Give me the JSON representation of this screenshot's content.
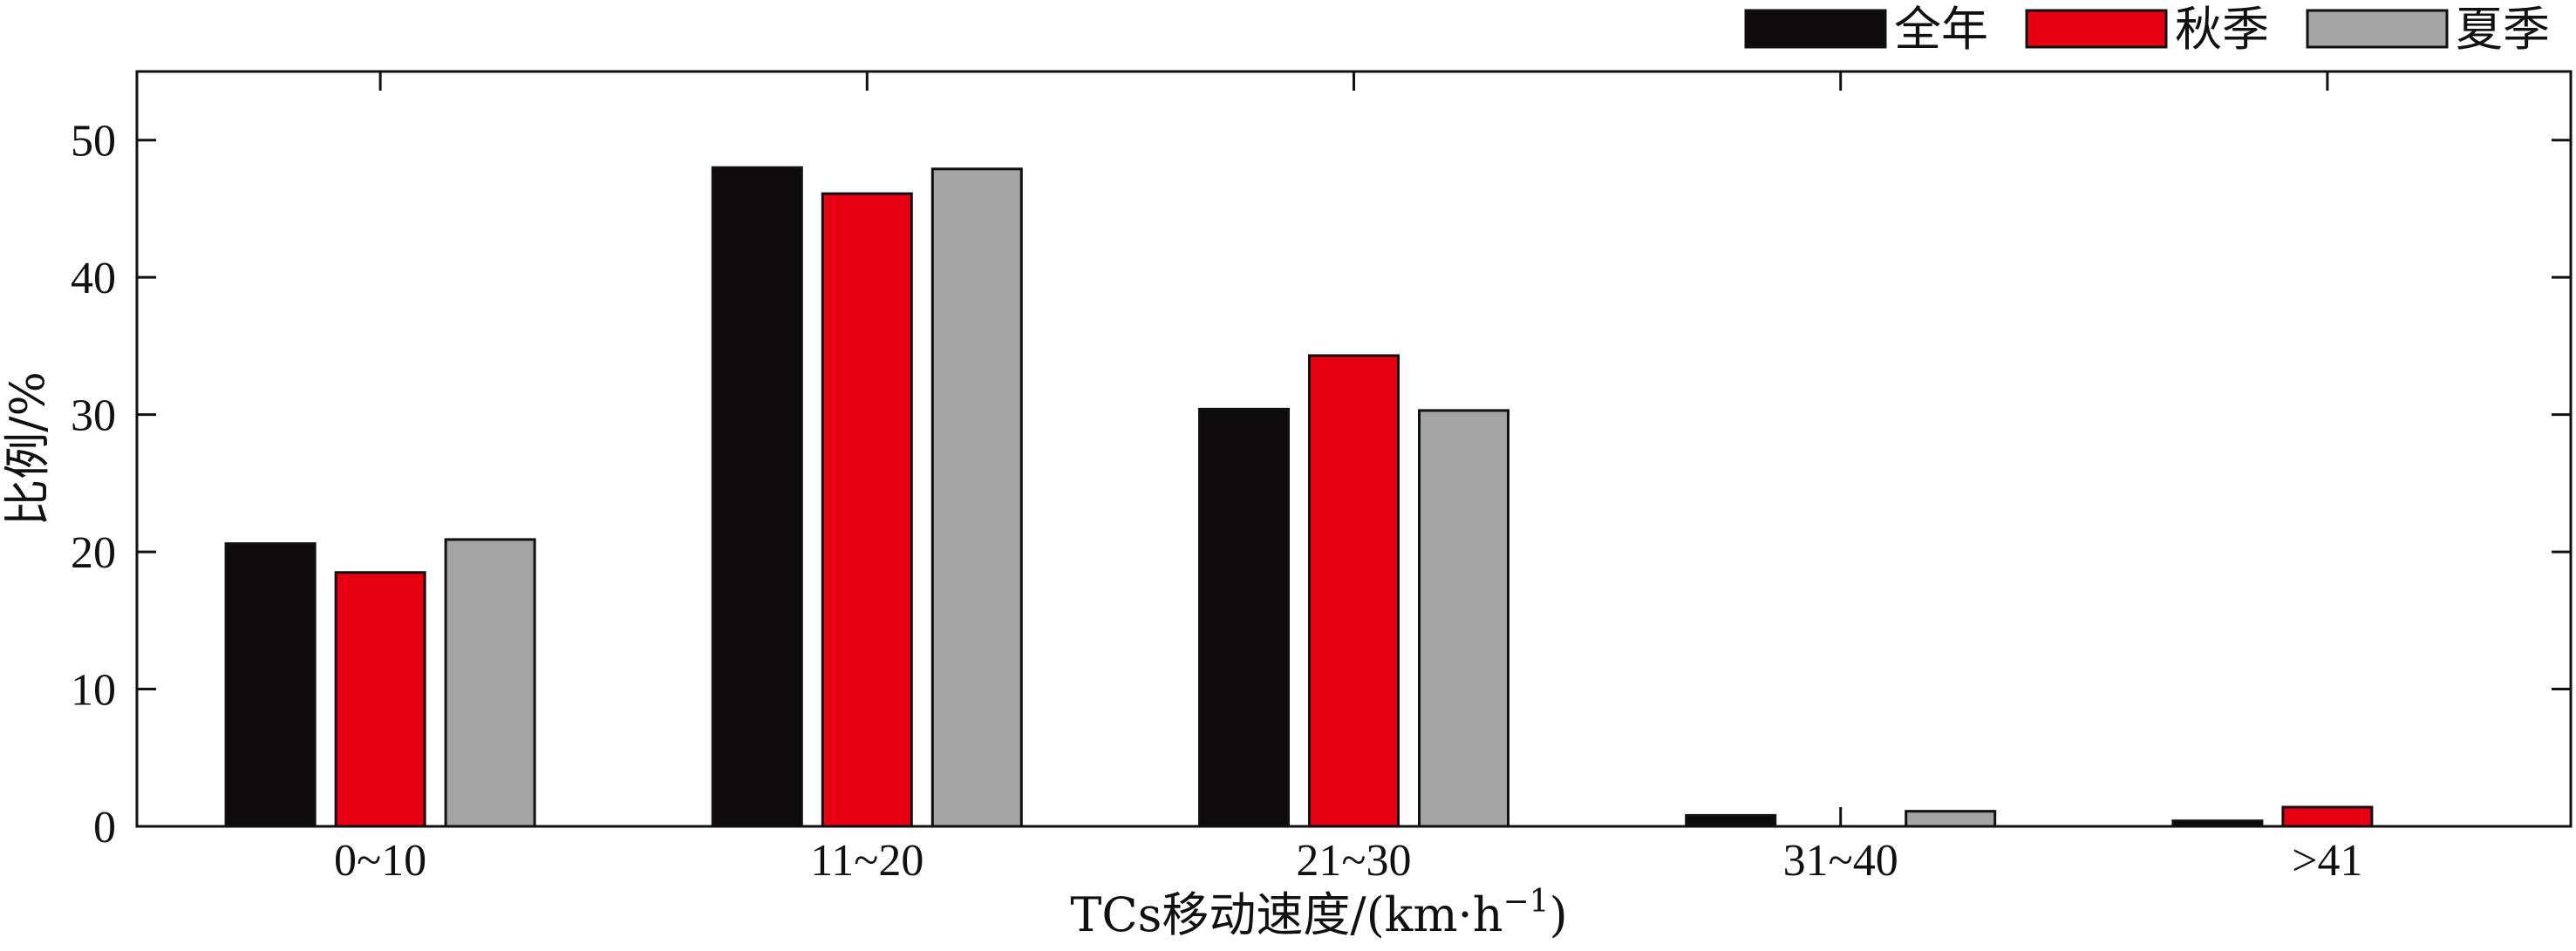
{
  "chart_data": {
    "type": "bar",
    "xlabel": "TCs移动速度/(km·h",
    "xlabel_sup": "−1",
    "xlabel_close": ")",
    "ylabel": "比例/%",
    "ylim": [
      0,
      55
    ],
    "yticks": [
      0,
      10,
      20,
      30,
      40,
      50
    ],
    "ytick_labels": [
      "0",
      "10",
      "20",
      "30",
      "40",
      "50"
    ],
    "categories": [
      "0~10",
      "11~20",
      "21~30",
      "31~40",
      ">41"
    ],
    "legend_position": "top-right",
    "series": [
      {
        "name": "全年",
        "color": "#0d0b0c",
        "values": [
          20.6,
          48.0,
          30.4,
          0.8,
          0.4
        ]
      },
      {
        "name": "秋季",
        "color": "#e60012",
        "values": [
          18.5,
          46.1,
          34.3,
          0.0,
          1.4
        ]
      },
      {
        "name": "夏季",
        "color": "#a4a4a4",
        "values": [
          20.9,
          47.9,
          30.3,
          1.1,
          0.0
        ]
      }
    ]
  }
}
